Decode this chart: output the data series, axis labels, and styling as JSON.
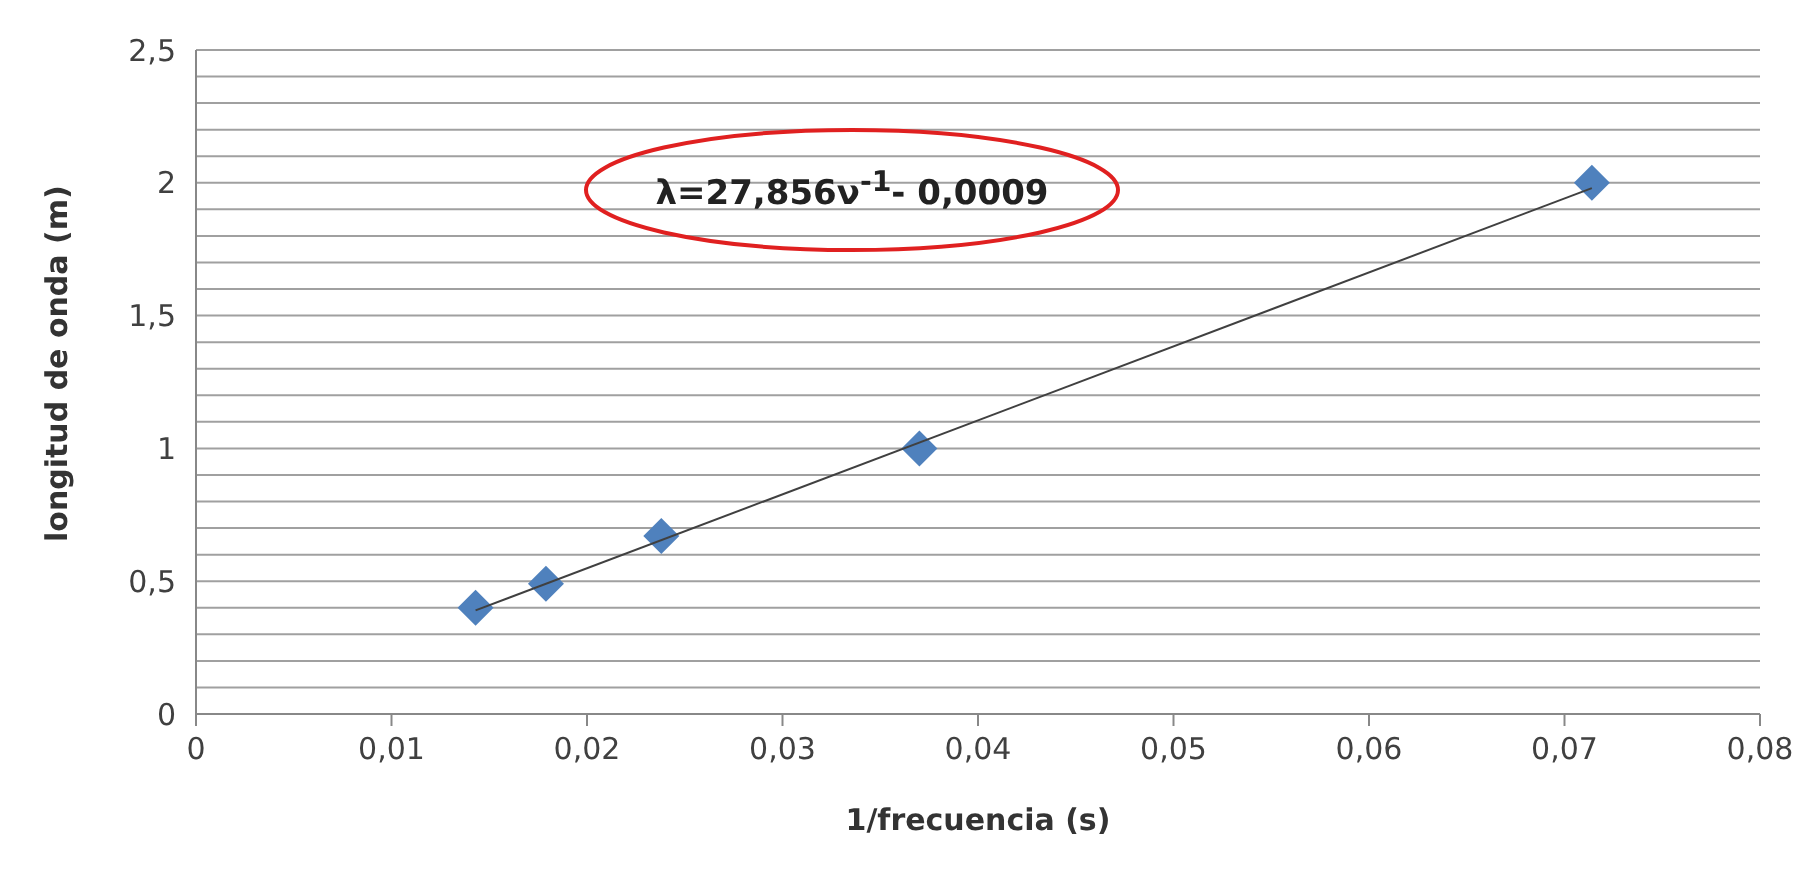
{
  "chart_data": {
    "type": "scatter",
    "xlabel": "1/frecuencia (s)",
    "ylabel": "longitud de onda (m)",
    "annotations": [
      "λ=27,856ν$^{-1}$- 0,0009"
    ],
    "series": [
      {
        "color": "#4f81bd",
        "marker": "diamond",
        "x": [
          0.0143,
          0.0179,
          0.0238,
          0.037,
          0.0714
        ],
        "values": [
          0.4,
          0.49,
          0.67,
          1.0,
          2.0
        ]
      },
      {
        "type": "line",
        "color": "#404040",
        "marker": "none",
        "x": [
          0.0143,
          0.0714
        ],
        "values": [
          0.39,
          1.98
        ]
      }
    ],
    "xlim": [
      0,
      0.08
    ],
    "xticks": [
      {
        "value": 0,
        "label": "0"
      },
      {
        "value": 0.01,
        "label": "0,01"
      },
      {
        "value": 0.02,
        "label": "0,02"
      },
      {
        "value": 0.03,
        "label": "0,03"
      },
      {
        "value": 0.04,
        "label": "0,04"
      },
      {
        "value": 0.05,
        "label": "0,05"
      },
      {
        "value": 0.06,
        "label": "0,06"
      },
      {
        "value": 0.07,
        "label": "0,07"
      },
      {
        "value": 0.08,
        "label": "0,08"
      }
    ],
    "ylim": [
      0,
      2.5
    ],
    "yticks": [
      {
        "value": 0,
        "label": "0"
      },
      {
        "value": 0.1,
        "label": null
      },
      {
        "value": 0.2,
        "label": null
      },
      {
        "value": 0.3,
        "label": null
      },
      {
        "value": 0.4,
        "label": null
      },
      {
        "value": 0.5,
        "label": "0,5"
      },
      {
        "value": 0.6,
        "label": null
      },
      {
        "value": 0.7,
        "label": null
      },
      {
        "value": 0.8,
        "label": null
      },
      {
        "value": 0.9,
        "label": null
      },
      {
        "value": 1,
        "label": "1"
      },
      {
        "value": 1.1,
        "label": null
      },
      {
        "value": 1.2,
        "label": null
      },
      {
        "value": 1.3,
        "label": null
      },
      {
        "value": 1.4,
        "label": null
      },
      {
        "value": 1.5,
        "label": "1,5"
      },
      {
        "value": 1.6,
        "label": null
      },
      {
        "value": 1.7,
        "label": null
      },
      {
        "value": 1.8,
        "label": null
      },
      {
        "value": 1.9,
        "label": null
      },
      {
        "value": 2,
        "label": "2"
      },
      {
        "value": 2.1,
        "label": null
      },
      {
        "value": 2.2,
        "label": null
      },
      {
        "value": 2.3,
        "label": null
      },
      {
        "value": 2.4,
        "label": null
      },
      {
        "value": 2.5,
        "label": "2,5"
      }
    ],
    "grid": "y",
    "legend": false
  }
}
